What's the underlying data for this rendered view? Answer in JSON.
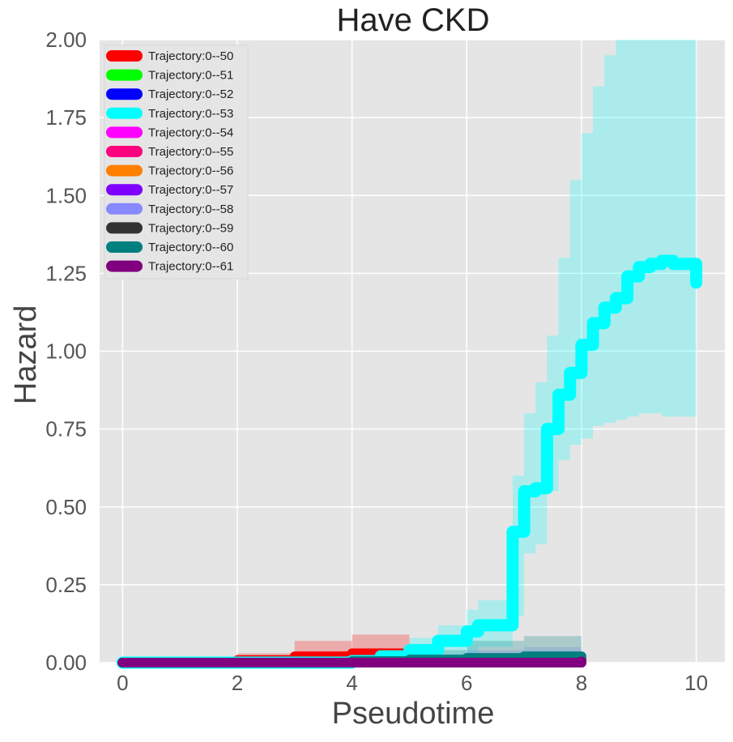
{
  "chart_data": {
    "type": "line",
    "title": "Have CKD",
    "xlabel": "Pseudotime",
    "ylabel": "Hazard",
    "xlim": [
      -0.4,
      10.5
    ],
    "ylim": [
      0,
      2.0
    ],
    "xticks": [
      0,
      2,
      4,
      6,
      8,
      10
    ],
    "yticks": [
      0,
      0.25,
      0.5,
      0.75,
      1.0,
      1.25,
      1.5,
      1.75,
      2.0
    ],
    "xtick_labels": [
      "0",
      "2",
      "4",
      "6",
      "8",
      "10"
    ],
    "ytick_labels": [
      "0.00",
      "0.25",
      "0.50",
      "0.75",
      "1.00",
      "1.25",
      "1.50",
      "1.75",
      "2.00"
    ],
    "grid": true,
    "legend_position": "top-left",
    "colors": {
      "background": "#E5E5E5",
      "grid": "#FFFFFF"
    },
    "series": [
      {
        "name": "Trajectory:0--50",
        "color": "#FF0000",
        "x": [
          0,
          1,
          2,
          3,
          4,
          5
        ],
        "y": [
          0,
          0.002,
          0.008,
          0.02,
          0.03,
          0.032
        ],
        "ci_lower": [
          0,
          0,
          0,
          0,
          0,
          0
        ],
        "ci_upper": [
          0,
          0.01,
          0.03,
          0.07,
          0.09,
          0.095
        ]
      },
      {
        "name": "Trajectory:0--51",
        "color": "#00FF00",
        "x": [
          0,
          8
        ],
        "y": [
          0,
          0.005
        ]
      },
      {
        "name": "Trajectory:0--52",
        "color": "#0000FF",
        "x": [
          0,
          8
        ],
        "y": [
          0,
          0.005
        ]
      },
      {
        "name": "Trajectory:0--53",
        "color": "#00FFFF",
        "x": [
          0,
          4,
          4.5,
          5,
          5.5,
          6,
          6.2,
          6.5,
          6.8,
          6.8,
          7.0,
          7.2,
          7.4,
          7.6,
          7.8,
          8.0,
          8.2,
          8.4,
          8.6,
          8.8,
          9.0,
          9.2,
          9.4,
          9.6,
          9.8,
          10.0
        ],
        "y": [
          0,
          0.005,
          0.02,
          0.04,
          0.07,
          0.1,
          0.12,
          0.12,
          0.12,
          0.42,
          0.55,
          0.56,
          0.75,
          0.86,
          0.93,
          1.02,
          1.09,
          1.14,
          1.17,
          1.24,
          1.27,
          1.28,
          1.29,
          1.28,
          1.28,
          1.22
        ],
        "ci_lower": [
          0,
          0,
          0,
          0,
          0.01,
          0.03,
          0.05,
          0.05,
          0.05,
          0.15,
          0.35,
          0.38,
          0.55,
          0.65,
          0.7,
          0.72,
          0.76,
          0.77,
          0.78,
          0.79,
          0.8,
          0.8,
          0.79,
          0.79,
          0.79,
          0.73
        ],
        "ci_upper": [
          0,
          0.02,
          0.04,
          0.08,
          0.12,
          0.17,
          0.2,
          0.2,
          0.2,
          0.6,
          0.8,
          0.9,
          1.05,
          1.3,
          1.55,
          1.7,
          1.85,
          1.95,
          2.0,
          2.0,
          2.0,
          2.0,
          2.0,
          2.0,
          2.0,
          2.0
        ]
      },
      {
        "name": "Trajectory:0--54",
        "color": "#FF00FF",
        "x": [
          0,
          8
        ],
        "y": [
          0,
          0.005
        ]
      },
      {
        "name": "Trajectory:0--55",
        "color": "#FF007F",
        "x": [
          0,
          8
        ],
        "y": [
          0,
          0.008
        ]
      },
      {
        "name": "Trajectory:0--56",
        "color": "#FF7F00",
        "x": [
          0,
          8
        ],
        "y": [
          0,
          0.005
        ]
      },
      {
        "name": "Trajectory:0--57",
        "color": "#7F00FF",
        "x": [
          0,
          8
        ],
        "y": [
          0,
          0.006
        ]
      },
      {
        "name": "Trajectory:0--58",
        "color": "#8888FF",
        "x": [
          0,
          4,
          5,
          6,
          7,
          8
        ],
        "y": [
          0,
          0.005,
          0.01,
          0.015,
          0.02,
          0.02
        ],
        "ci_lower": [
          0,
          0,
          0,
          0,
          0,
          0
        ],
        "ci_upper": [
          0,
          0.01,
          0.02,
          0.04,
          0.05,
          0.05
        ]
      },
      {
        "name": "Trajectory:0--59",
        "color": "#333333",
        "x": [
          0,
          8
        ],
        "y": [
          0,
          0.01
        ]
      },
      {
        "name": "Trajectory:0--60",
        "color": "#007F7F",
        "x": [
          0,
          4,
          5,
          6,
          7,
          8
        ],
        "y": [
          0,
          0.005,
          0.01,
          0.015,
          0.02,
          0.02
        ],
        "ci_lower": [
          0,
          0,
          0,
          0,
          0,
          0
        ],
        "ci_upper": [
          0,
          0.02,
          0.04,
          0.07,
          0.085,
          0.085
        ]
      },
      {
        "name": "Trajectory:0--61",
        "color": "#800080",
        "x": [
          0,
          8
        ],
        "y": [
          0,
          0.004
        ]
      }
    ]
  }
}
